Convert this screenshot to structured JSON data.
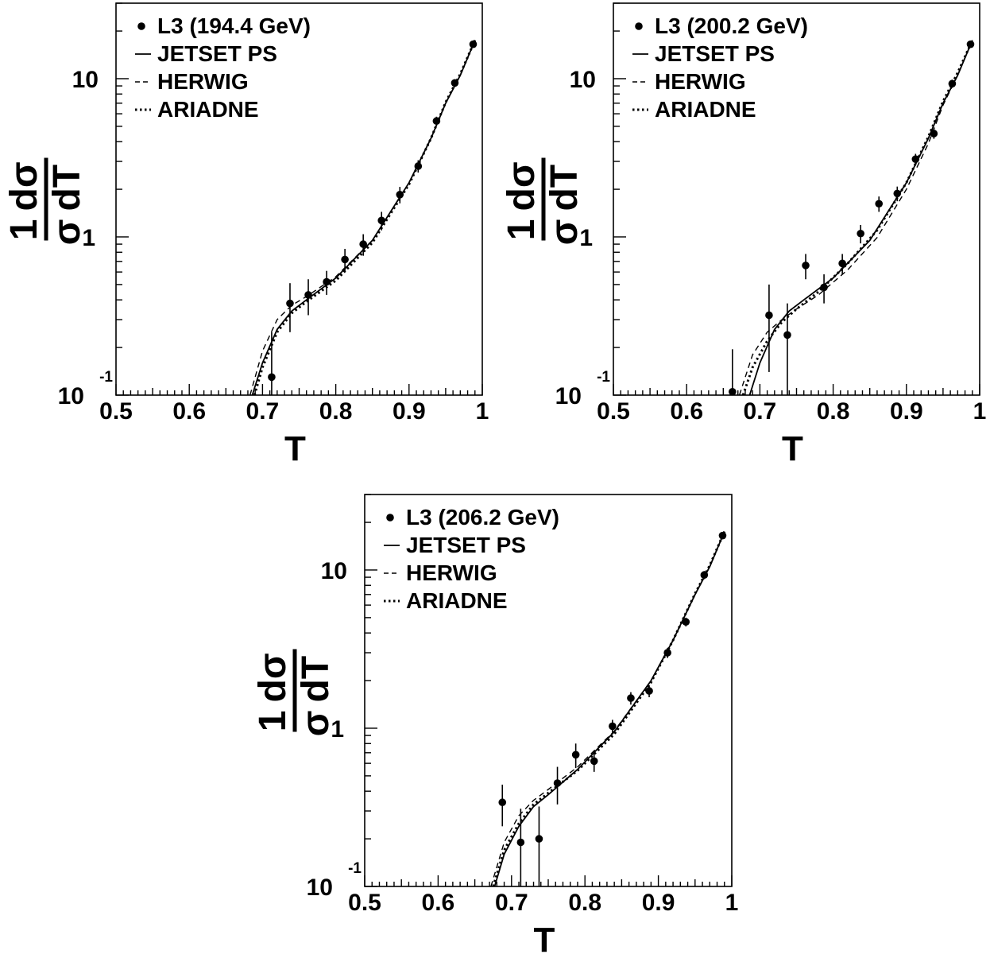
{
  "chart_data": [
    {
      "type": "scatter",
      "legend": {
        "data": "L3 (194.4 GeV)",
        "models": [
          "JETSET PS",
          "HERWIG",
          "ARIADNE"
        ]
      },
      "xlabel": "T",
      "ylabel": {
        "num_a": "1",
        "num_b": "dσ",
        "den_a": "σ",
        "den_b": "dT"
      },
      "xlim": [
        0.5,
        1.0
      ],
      "ylim": [
        0.1,
        30
      ],
      "yscale": "log",
      "xticks": [
        "0.5",
        "0.6",
        "0.7",
        "0.8",
        "0.9",
        "1"
      ],
      "yticks": {
        "ten_base": "10",
        "ten_exp": "-1",
        "one": "1",
        "ten": "10"
      },
      "points": [
        {
          "x": 0.7125,
          "y": 0.13,
          "err": 0.12
        },
        {
          "x": 0.7375,
          "y": 0.38,
          "err": 0.13
        },
        {
          "x": 0.7625,
          "y": 0.43,
          "err": 0.11
        },
        {
          "x": 0.7875,
          "y": 0.52,
          "err": 0.09
        },
        {
          "x": 0.8125,
          "y": 0.72,
          "err": 0.12
        },
        {
          "x": 0.8375,
          "y": 0.9,
          "err": 0.14
        },
        {
          "x": 0.8625,
          "y": 1.27,
          "err": 0.17
        },
        {
          "x": 0.8875,
          "y": 1.85,
          "err": 0.22
        },
        {
          "x": 0.9125,
          "y": 2.8,
          "err": 0.25
        },
        {
          "x": 0.9375,
          "y": 5.4,
          "err": 0.35
        },
        {
          "x": 0.9625,
          "y": 9.4,
          "err": 0.5
        },
        {
          "x": 0.9875,
          "y": 16.5,
          "err": 0.8
        }
      ],
      "series": [
        {
          "name": "JETSET PS",
          "style": "solid",
          "x": [
            0.686,
            0.7,
            0.72,
            0.74,
            0.76,
            0.8,
            0.85,
            0.9,
            0.93,
            0.95,
            0.97,
            0.99
          ],
          "y": [
            0.1,
            0.16,
            0.26,
            0.34,
            0.4,
            0.55,
            0.95,
            2.2,
            4.2,
            7.0,
            10.5,
            17.5
          ]
        },
        {
          "name": "HERWIG",
          "style": "dashed",
          "x": [
            0.683,
            0.7,
            0.72,
            0.74,
            0.76,
            0.8,
            0.85,
            0.9,
            0.93,
            0.95,
            0.97,
            0.99
          ],
          "y": [
            0.1,
            0.19,
            0.3,
            0.37,
            0.42,
            0.56,
            0.95,
            2.2,
            4.2,
            7.0,
            10.5,
            17.5
          ]
        },
        {
          "name": "ARIADNE",
          "style": "dotted",
          "x": [
            0.689,
            0.7,
            0.72,
            0.74,
            0.76,
            0.8,
            0.85,
            0.9,
            0.93,
            0.95,
            0.97,
            0.99
          ],
          "y": [
            0.1,
            0.15,
            0.25,
            0.33,
            0.39,
            0.53,
            0.92,
            2.15,
            4.2,
            7.1,
            10.7,
            17.5
          ]
        }
      ]
    },
    {
      "type": "scatter",
      "legend": {
        "data": "L3 (200.2 GeV)",
        "models": [
          "JETSET PS",
          "HERWIG",
          "ARIADNE"
        ]
      },
      "xlabel": "T",
      "ylabel": {
        "num_a": "1",
        "num_b": "dσ",
        "den_a": "σ",
        "den_b": "dT"
      },
      "xlim": [
        0.5,
        1.0
      ],
      "ylim": [
        0.1,
        30
      ],
      "yscale": "log",
      "xticks": [
        "0.5",
        "0.6",
        "0.7",
        "0.8",
        "0.9",
        "1"
      ],
      "yticks": {
        "ten_base": "10",
        "ten_exp": "-1",
        "one": "1",
        "ten": "10"
      },
      "points": [
        {
          "x": 0.6625,
          "y": 0.105,
          "err": 0.09
        },
        {
          "x": 0.7125,
          "y": 0.32,
          "err": 0.18
        },
        {
          "x": 0.7375,
          "y": 0.24,
          "err": 0.14
        },
        {
          "x": 0.7625,
          "y": 0.66,
          "err": 0.12
        },
        {
          "x": 0.7875,
          "y": 0.48,
          "err": 0.1
        },
        {
          "x": 0.8125,
          "y": 0.68,
          "err": 0.1
        },
        {
          "x": 0.8375,
          "y": 1.05,
          "err": 0.14
        },
        {
          "x": 0.8625,
          "y": 1.62,
          "err": 0.18
        },
        {
          "x": 0.8875,
          "y": 1.88,
          "err": 0.2
        },
        {
          "x": 0.9125,
          "y": 3.1,
          "err": 0.25
        },
        {
          "x": 0.9375,
          "y": 4.5,
          "err": 0.33
        },
        {
          "x": 0.9625,
          "y": 9.3,
          "err": 0.55
        },
        {
          "x": 0.9875,
          "y": 16.5,
          "err": 0.8
        }
      ],
      "series": [
        {
          "name": "JETSET PS",
          "style": "solid",
          "x": [
            0.686,
            0.7,
            0.72,
            0.74,
            0.76,
            0.8,
            0.85,
            0.9,
            0.93,
            0.95,
            0.97,
            0.99
          ],
          "y": [
            0.1,
            0.16,
            0.26,
            0.34,
            0.4,
            0.55,
            0.95,
            2.2,
            4.2,
            7.0,
            10.5,
            17.5
          ]
        },
        {
          "name": "HERWIG",
          "style": "dashed",
          "x": [
            0.672,
            0.69,
            0.71,
            0.73,
            0.75,
            0.78,
            0.82,
            0.86,
            0.9,
            0.93,
            0.95,
            0.97,
            0.99
          ],
          "y": [
            0.1,
            0.18,
            0.25,
            0.3,
            0.35,
            0.43,
            0.62,
            0.99,
            2.0,
            3.9,
            6.8,
            10.5,
            17.5
          ]
        },
        {
          "name": "ARIADNE",
          "style": "dotted",
          "x": [
            0.677,
            0.69,
            0.71,
            0.73,
            0.75,
            0.78,
            0.82,
            0.86,
            0.9,
            0.93,
            0.95,
            0.97,
            0.99
          ],
          "y": [
            0.1,
            0.15,
            0.22,
            0.29,
            0.35,
            0.45,
            0.68,
            1.1,
            2.2,
            4.3,
            7.2,
            10.9,
            17.5
          ]
        }
      ]
    },
    {
      "type": "scatter",
      "legend": {
        "data": "L3 (206.2 GeV)",
        "models": [
          "JETSET PS",
          "HERWIG",
          "ARIADNE"
        ]
      },
      "xlabel": "T",
      "ylabel": {
        "num_a": "1",
        "num_b": "dσ",
        "den_a": "σ",
        "den_b": "dT"
      },
      "xlim": [
        0.5,
        1.0
      ],
      "ylim": [
        0.1,
        30
      ],
      "yscale": "log",
      "xticks": [
        "0.5",
        "0.6",
        "0.7",
        "0.8",
        "0.9",
        "1"
      ],
      "yticks": {
        "ten_base": "10",
        "ten_exp": "-1",
        "one": "1",
        "ten": "10"
      },
      "points": [
        {
          "x": 0.6875,
          "y": 0.34,
          "err": 0.1
        },
        {
          "x": 0.7125,
          "y": 0.19,
          "err": 0.12
        },
        {
          "x": 0.7375,
          "y": 0.2,
          "err": 0.12
        },
        {
          "x": 0.7625,
          "y": 0.45,
          "err": 0.12
        },
        {
          "x": 0.7875,
          "y": 0.68,
          "err": 0.12
        },
        {
          "x": 0.8125,
          "y": 0.62,
          "err": 0.09
        },
        {
          "x": 0.8375,
          "y": 1.03,
          "err": 0.1
        },
        {
          "x": 0.8625,
          "y": 1.55,
          "err": 0.14
        },
        {
          "x": 0.8875,
          "y": 1.72,
          "err": 0.15
        },
        {
          "x": 0.9125,
          "y": 3.0,
          "err": 0.22
        },
        {
          "x": 0.9375,
          "y": 4.7,
          "err": 0.3
        },
        {
          "x": 0.9625,
          "y": 9.3,
          "err": 0.55
        },
        {
          "x": 0.9875,
          "y": 16.5,
          "err": 0.8
        }
      ],
      "series": [
        {
          "name": "JETSET PS",
          "style": "solid",
          "x": [
            0.677,
            0.69,
            0.71,
            0.73,
            0.75,
            0.79,
            0.84,
            0.89,
            0.92,
            0.95,
            0.97,
            0.99
          ],
          "y": [
            0.1,
            0.16,
            0.24,
            0.32,
            0.38,
            0.55,
            0.95,
            2.0,
            3.6,
            7.0,
            10.5,
            17.5
          ]
        },
        {
          "name": "HERWIG",
          "style": "dashed",
          "x": [
            0.672,
            0.69,
            0.71,
            0.73,
            0.75,
            0.79,
            0.84,
            0.89,
            0.92,
            0.95,
            0.97,
            0.99
          ],
          "y": [
            0.1,
            0.19,
            0.28,
            0.35,
            0.41,
            0.57,
            0.96,
            2.0,
            3.6,
            7.0,
            10.5,
            17.5
          ]
        },
        {
          "name": "ARIADNE",
          "style": "dotted",
          "x": [
            0.675,
            0.69,
            0.71,
            0.73,
            0.75,
            0.79,
            0.84,
            0.89,
            0.92,
            0.95,
            0.97,
            0.99
          ],
          "y": [
            0.1,
            0.17,
            0.25,
            0.33,
            0.39,
            0.54,
            0.92,
            1.95,
            3.6,
            7.1,
            10.7,
            17.5
          ]
        }
      ]
    }
  ]
}
